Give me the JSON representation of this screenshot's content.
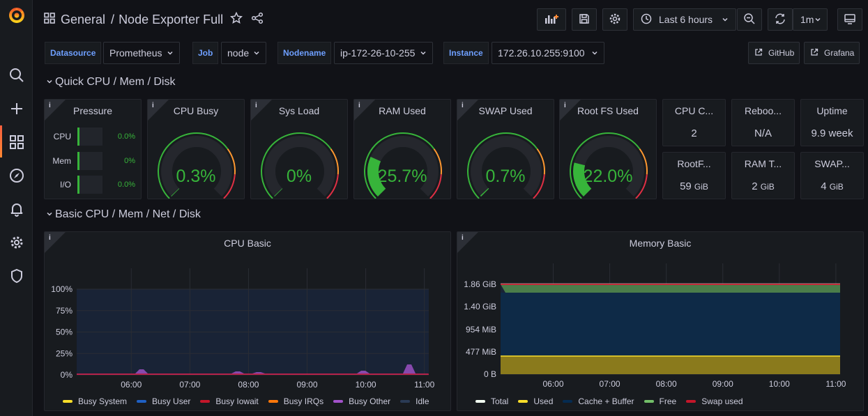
{
  "topbar": {
    "folder": "General",
    "separator": "/",
    "dashboard": "Node Exporter Full",
    "time_range": "Last 6 hours",
    "refresh": "1m"
  },
  "variables": [
    {
      "label": "Datasource",
      "value": "Prometheus"
    },
    {
      "label": "Job",
      "value": "node"
    },
    {
      "label": "Nodename",
      "value": "ip-172-26-10-255"
    },
    {
      "label": "Instance",
      "value": "172.26.10.255:9100"
    }
  ],
  "links": [
    "GitHub",
    "Grafana"
  ],
  "rows": {
    "quick": "Quick CPU / Mem / Disk",
    "basic": "Basic CPU / Mem / Net / Disk"
  },
  "info": "i",
  "pressure": {
    "title": "Pressure",
    "items": [
      {
        "label": "CPU",
        "value": "0.0%",
        "pct": 0
      },
      {
        "label": "Mem",
        "value": "0%",
        "pct": 0
      },
      {
        "label": "I/O",
        "value": "0.0%",
        "pct": 0
      }
    ]
  },
  "gauges": [
    {
      "title": "CPU Busy",
      "value": "0.3%",
      "pct": 0.003,
      "color": "#37b43a"
    },
    {
      "title": "Sys Load",
      "value": "0%",
      "pct": 0,
      "color": "#37b43a"
    },
    {
      "title": "RAM Used",
      "value": "25.7%",
      "pct": 0.257,
      "color": "#37b43a"
    },
    {
      "title": "SWAP Used",
      "value": "0.7%",
      "pct": 0.007,
      "color": "#37b43a"
    },
    {
      "title": "Root FS Used",
      "value": "22.0%",
      "pct": 0.22,
      "color": "#37b43a"
    }
  ],
  "stats": [
    {
      "title": "CPU C...",
      "value": "2",
      "unit": ""
    },
    {
      "title": "Reboo...",
      "value": "N/A",
      "unit": ""
    },
    {
      "title": "Uptime",
      "value": "9.9 week",
      "unit": ""
    },
    {
      "title": "RootF...",
      "value": "59",
      "unit": "GiB"
    },
    {
      "title": "RAM T...",
      "value": "2",
      "unit": "GiB"
    },
    {
      "title": "SWAP...",
      "value": "4",
      "unit": "GiB"
    }
  ],
  "chart_data": [
    {
      "type": "area",
      "title": "CPU Basic",
      "x": [
        "06:00",
        "07:00",
        "08:00",
        "09:00",
        "10:00",
        "11:00"
      ],
      "y_ticks": [
        "100%",
        "75%",
        "50%",
        "25%",
        "0%"
      ],
      "ylim": [
        0,
        100
      ],
      "series": [
        {
          "name": "Busy System",
          "color": "#fade2a"
        },
        {
          "name": "Busy User",
          "color": "#1f60c4"
        },
        {
          "name": "Busy Iowait",
          "color": "#c4162a"
        },
        {
          "name": "Busy IRQs",
          "color": "#ff780a"
        },
        {
          "name": "Busy Other",
          "color": "#a352cc"
        },
        {
          "name": "Idle",
          "color": "#2a3b55"
        }
      ]
    },
    {
      "type": "area",
      "title": "Memory Basic",
      "x": [
        "06:00",
        "07:00",
        "08:00",
        "09:00",
        "10:00",
        "11:00"
      ],
      "y_ticks": [
        "1.86 GiB",
        "1.40 GiB",
        "954 MiB",
        "477 MiB",
        "0 B"
      ],
      "series": [
        {
          "name": "Total",
          "color": "#f2fff2"
        },
        {
          "name": "Used",
          "color": "#fade2a"
        },
        {
          "name": "Cache + Buffer",
          "color": "#052b51"
        },
        {
          "name": "Free",
          "color": "#73bf69"
        },
        {
          "name": "Swap used",
          "color": "#c4162a"
        }
      ]
    }
  ]
}
